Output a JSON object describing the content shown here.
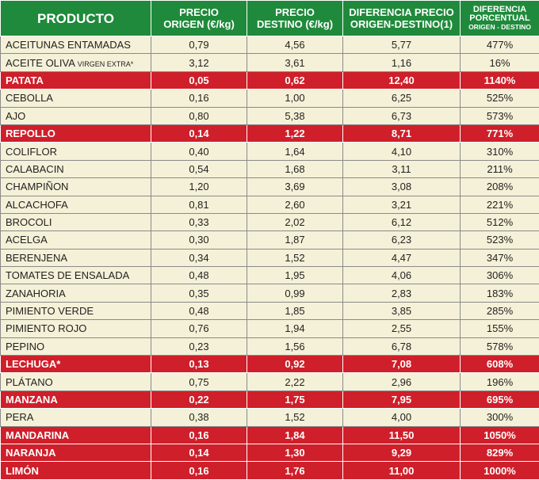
{
  "header": {
    "producto": "PRODUCTO",
    "origen_l1": "PRECIO",
    "origen_l2": "ORIGEN (€/kg)",
    "destino_l1": "PRECIO",
    "destino_l2": "DESTINO (€/kg)",
    "diff_l1": "DIFERENCIA PRECIO",
    "diff_l2": "ORIGEN-DESTINO(1)",
    "pct_l1": "DIFERENCIA",
    "pct_l2": "PORCENTUAL",
    "pct_l3": "ORIGEN - DESTINO"
  },
  "colors": {
    "header_green": "#1f8a3b",
    "highlight_red": "#cf1f2a",
    "row_cream": "#f4f1d8"
  },
  "rows": [
    {
      "name": "ACEITUNAS ENTAMADAS",
      "origen": "0,79",
      "destino": "4,56",
      "diff": "5,77",
      "pct": "477%",
      "hl": false
    },
    {
      "name": "ACEITE OLIVA ",
      "extra": "VIRGEN EXTRA*",
      "origen": "3,12",
      "destino": "3,61",
      "diff": "1,16",
      "pct": "16%",
      "hl": false
    },
    {
      "name": "PATATA",
      "origen": "0,05",
      "destino": "0,62",
      "diff": "12,40",
      "pct": "1140%",
      "hl": true
    },
    {
      "name": "CEBOLLA",
      "origen": "0,16",
      "destino": "1,00",
      "diff": "6,25",
      "pct": "525%",
      "hl": false
    },
    {
      "name": "AJO",
      "origen": "0,80",
      "destino": "5,38",
      "diff": "6,73",
      "pct": "573%",
      "hl": false
    },
    {
      "name": "REPOLLO",
      "origen": "0,14",
      "destino": "1,22",
      "diff": "8,71",
      "pct": "771%",
      "hl": true
    },
    {
      "name": "COLIFLOR",
      "origen": "0,40",
      "destino": "1,64",
      "diff": "4,10",
      "pct": "310%",
      "hl": false
    },
    {
      "name": "CALABACIN",
      "origen": "0,54",
      "destino": "1,68",
      "diff": "3,11",
      "pct": "211%",
      "hl": false
    },
    {
      "name": "CHAMPIÑON",
      "origen": "1,20",
      "destino": "3,69",
      "diff": "3,08",
      "pct": "208%",
      "hl": false
    },
    {
      "name": "ALCACHOFA",
      "origen": "0,81",
      "destino": "2,60",
      "diff": "3,21",
      "pct": "221%",
      "hl": false
    },
    {
      "name": "BROCOLI",
      "origen": "0,33",
      "destino": "2,02",
      "diff": "6,12",
      "pct": "512%",
      "hl": false
    },
    {
      "name": "ACELGA",
      "origen": "0,30",
      "destino": "1,87",
      "diff": "6,23",
      "pct": "523%",
      "hl": false
    },
    {
      "name": "BERENJENA",
      "origen": "0,34",
      "destino": "1,52",
      "diff": "4,47",
      "pct": "347%",
      "hl": false
    },
    {
      "name": "TOMATES DE ENSALADA",
      "origen": "0,48",
      "destino": "1,95",
      "diff": "4,06",
      "pct": "306%",
      "hl": false
    },
    {
      "name": "ZANAHORIA",
      "origen": "0,35",
      "destino": "0,99",
      "diff": "2,83",
      "pct": "183%",
      "hl": false
    },
    {
      "name": "PIMIENTO VERDE",
      "origen": "0,48",
      "destino": "1,85",
      "diff": "3,85",
      "pct": "285%",
      "hl": false
    },
    {
      "name": "PIMIENTO ROJO",
      "origen": "0,76",
      "destino": "1,94",
      "diff": "2,55",
      "pct": "155%",
      "hl": false
    },
    {
      "name": "PEPINO",
      "origen": "0,23",
      "destino": "1,56",
      "diff": "6,78",
      "pct": "578%",
      "hl": false
    },
    {
      "name": "LECHUGA*",
      "origen": "0,13",
      "destino": "0,92",
      "diff": "7,08",
      "pct": "608%",
      "hl": true
    },
    {
      "name": "PLÁTANO",
      "origen": "0,75",
      "destino": "2,22",
      "diff": "2,96",
      "pct": "196%",
      "hl": false
    },
    {
      "name": "MANZANA",
      "origen": "0,22",
      "destino": "1,75",
      "diff": "7,95",
      "pct": "695%",
      "hl": true
    },
    {
      "name": "PERA",
      "origen": "0,38",
      "destino": "1,52",
      "diff": "4,00",
      "pct": "300%",
      "hl": false
    },
    {
      "name": "MANDARINA",
      "origen": "0,16",
      "destino": "1,84",
      "diff": "11,50",
      "pct": "1050%",
      "hl": true
    },
    {
      "name": "NARANJA",
      "origen": "0,14",
      "destino": "1,30",
      "diff": "9,29",
      "pct": "829%",
      "hl": true
    },
    {
      "name": "LIMÓN",
      "origen": "0,16",
      "destino": "1,76",
      "diff": "11,00",
      "pct": "1000%",
      "hl": true
    }
  ]
}
